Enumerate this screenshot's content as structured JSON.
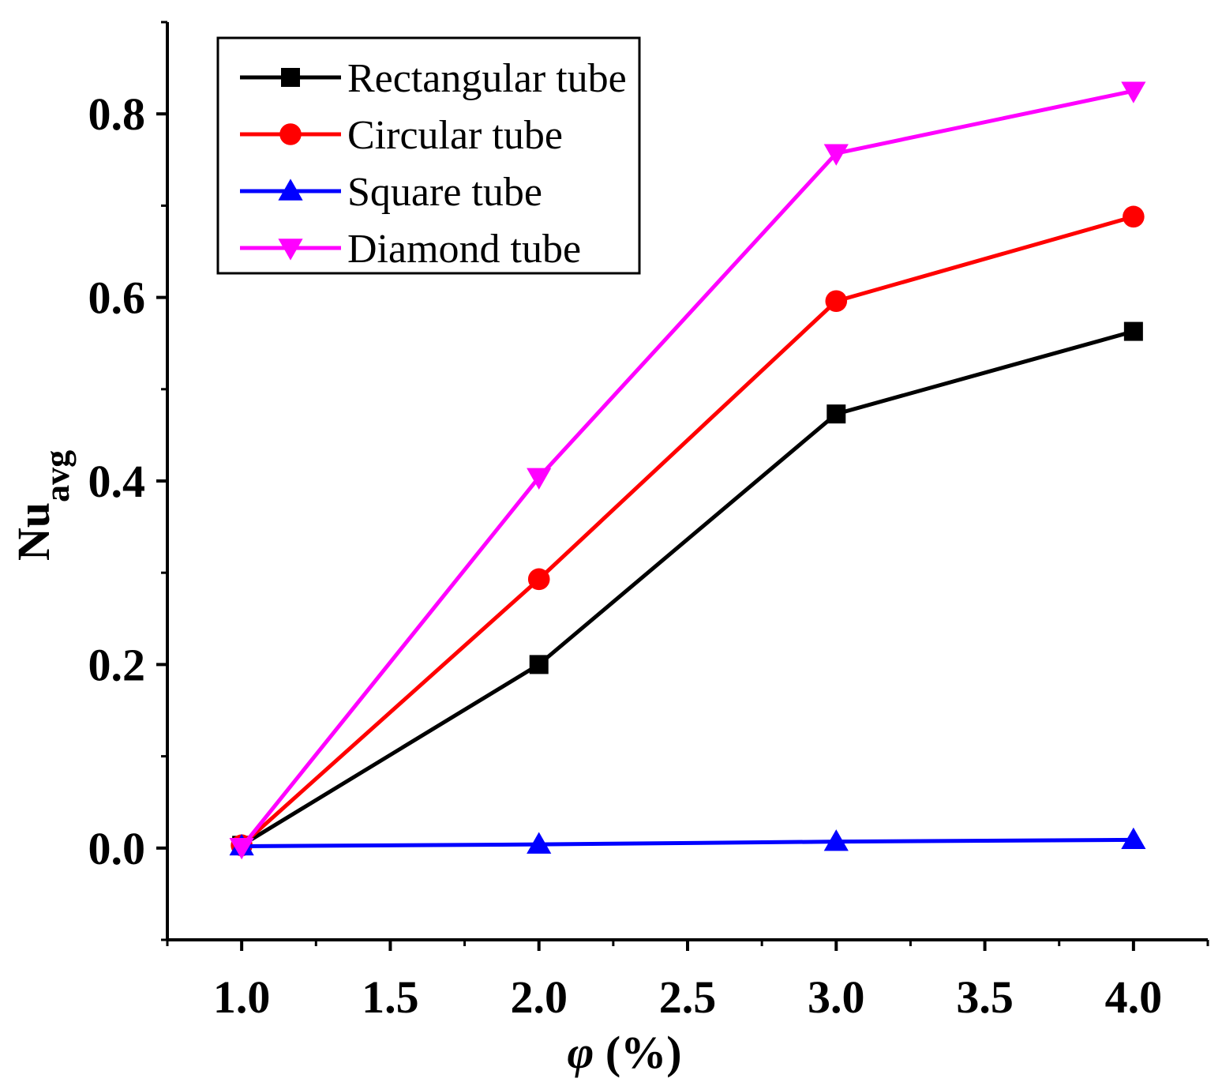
{
  "chart_data": {
    "type": "line",
    "title": "",
    "xlabel": "φ (%)",
    "ylabel": {
      "main": "Nu",
      "sub": "avg"
    },
    "xlim": [
      0.75,
      4.25
    ],
    "ylim": [
      -0.1,
      0.9
    ],
    "x_ticks": [
      1.0,
      1.5,
      2.0,
      2.5,
      3.0,
      3.5,
      4.0
    ],
    "x_tick_labels": [
      "1.0",
      "1.5",
      "2.0",
      "2.5",
      "3.0",
      "3.5",
      "4.0"
    ],
    "y_ticks": [
      0.0,
      0.2,
      0.4,
      0.6,
      0.8
    ],
    "y_tick_labels": [
      "0.0",
      "0.2",
      "0.4",
      "0.6",
      "0.8"
    ],
    "grid": false,
    "legend_position": "top-left",
    "x": [
      1.0,
      2.0,
      3.0,
      4.0
    ],
    "series": [
      {
        "name": "Rectangular tube",
        "values": [
          0.003,
          0.2,
          0.473,
          0.563
        ],
        "color": "#000000",
        "marker": "square"
      },
      {
        "name": "Circular tube",
        "values": [
          0.003,
          0.293,
          0.596,
          0.688
        ],
        "color": "#ff0000",
        "marker": "circle"
      },
      {
        "name": "Square tube",
        "values": [
          0.002,
          0.004,
          0.007,
          0.009
        ],
        "color": "#0000ff",
        "marker": "triangle-up"
      },
      {
        "name": "Diamond tube",
        "values": [
          0.001,
          0.404,
          0.757,
          0.825
        ],
        "color": "#ff00ff",
        "marker": "triangle-down"
      }
    ]
  }
}
